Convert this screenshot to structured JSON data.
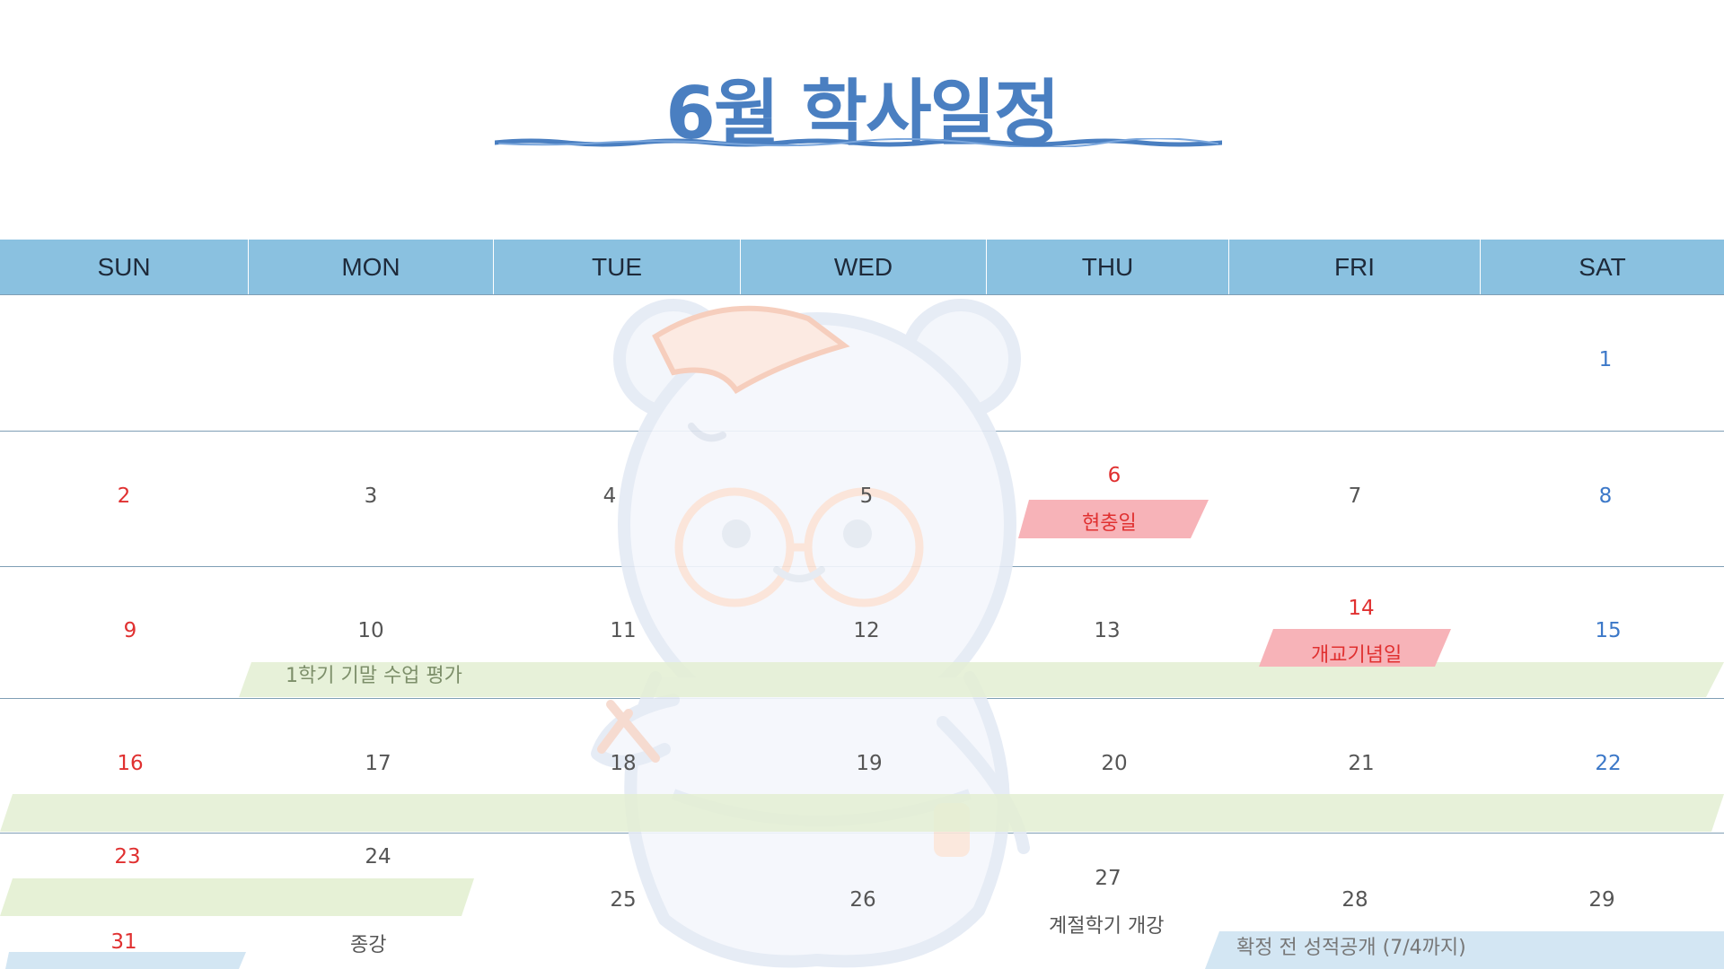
{
  "title": "6월 학사일정",
  "weekdays": [
    "SUN",
    "MON",
    "TUE",
    "WED",
    "THU",
    "FRI",
    "SAT"
  ],
  "dates": {
    "d1": "1",
    "d2": "2",
    "d3": "3",
    "d4": "4",
    "d5": "5",
    "d6": "6",
    "d7": "7",
    "d8": "8",
    "d9": "9",
    "d10": "10",
    "d11": "11",
    "d12": "12",
    "d13": "13",
    "d14": "14",
    "d15": "15",
    "d16": "16",
    "d17": "17",
    "d18": "18",
    "d19": "19",
    "d20": "20",
    "d21": "21",
    "d22": "22",
    "d23": "23",
    "d24": "24",
    "d25": "25",
    "d26": "26",
    "d27": "27",
    "d28": "28",
    "d29": "29",
    "d31": "31"
  },
  "events": {
    "memorial_day": "현충일",
    "founding_day": "개교기념일",
    "eval": "1학기 기말 수업 평가",
    "last_class": "종강",
    "summer_session": "계절학기 개강",
    "grades": "확정 전 성적공개 (7/4까지)"
  },
  "colors": {
    "title": "#4a7fc1",
    "header": "#8ac1e0",
    "sunday": "#e03030",
    "saturday": "#3c78c8",
    "holiday_band": "#f7b3b8",
    "green_band": "#e3efd2",
    "blue_band": "#d3e6f3"
  },
  "icons": {
    "watermark": "bear-mascot-icon"
  }
}
